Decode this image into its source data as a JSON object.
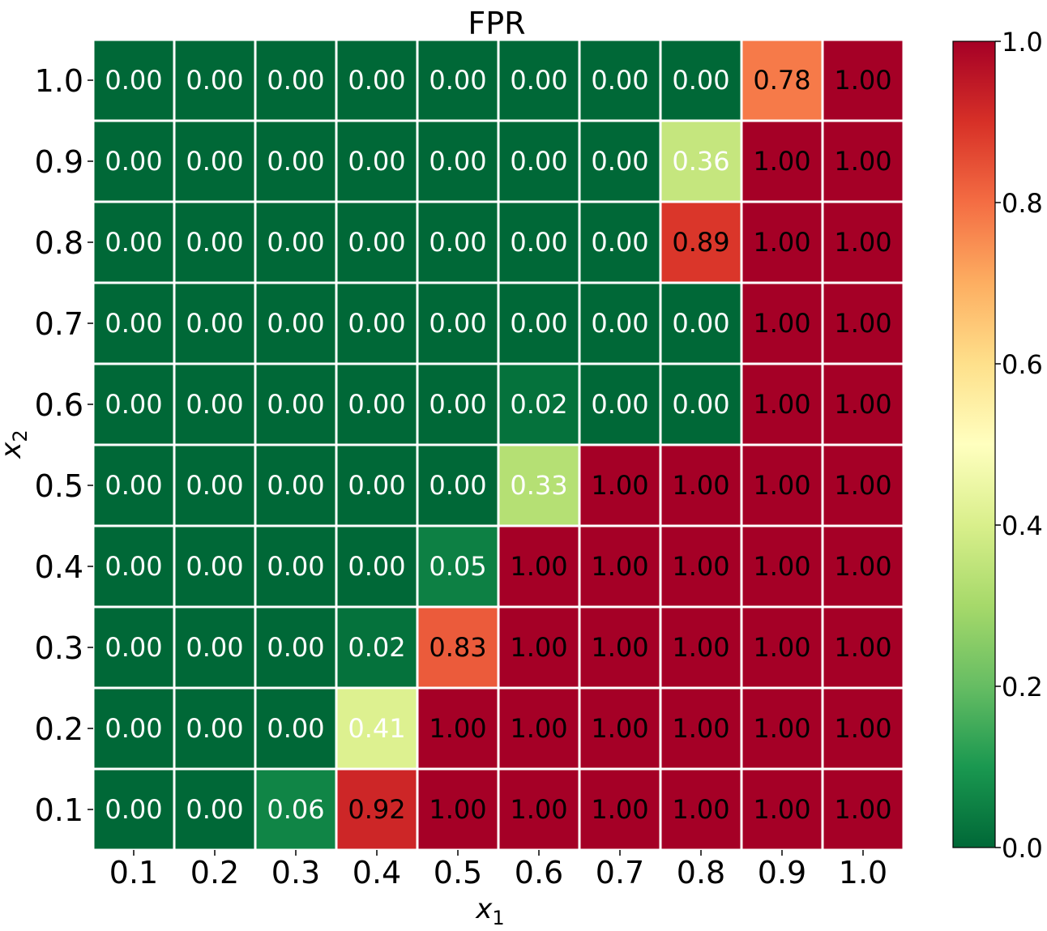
{
  "chart_data": {
    "type": "heatmap",
    "title": "FPR",
    "xlabel": "x",
    "xlabel_sub": "1",
    "ylabel": "x",
    "ylabel_sub": "2",
    "x": [
      "0.1",
      "0.2",
      "0.3",
      "0.4",
      "0.5",
      "0.6",
      "0.7",
      "0.8",
      "0.9",
      "1.0"
    ],
    "y": [
      "1.0",
      "0.9",
      "0.8",
      "0.7",
      "0.6",
      "0.5",
      "0.4",
      "0.3",
      "0.2",
      "0.1"
    ],
    "values": [
      [
        0.0,
        0.0,
        0.0,
        0.0,
        0.0,
        0.0,
        0.0,
        0.0,
        0.78,
        1.0
      ],
      [
        0.0,
        0.0,
        0.0,
        0.0,
        0.0,
        0.0,
        0.0,
        0.36,
        1.0,
        1.0
      ],
      [
        0.0,
        0.0,
        0.0,
        0.0,
        0.0,
        0.0,
        0.0,
        0.89,
        1.0,
        1.0
      ],
      [
        0.0,
        0.0,
        0.0,
        0.0,
        0.0,
        0.0,
        0.0,
        0.0,
        1.0,
        1.0
      ],
      [
        0.0,
        0.0,
        0.0,
        0.0,
        0.0,
        0.02,
        0.0,
        0.0,
        1.0,
        1.0
      ],
      [
        0.0,
        0.0,
        0.0,
        0.0,
        0.0,
        0.33,
        1.0,
        1.0,
        1.0,
        1.0
      ],
      [
        0.0,
        0.0,
        0.0,
        0.0,
        0.05,
        1.0,
        1.0,
        1.0,
        1.0,
        1.0
      ],
      [
        0.0,
        0.0,
        0.0,
        0.02,
        0.83,
        1.0,
        1.0,
        1.0,
        1.0,
        1.0
      ],
      [
        0.0,
        0.0,
        0.0,
        0.41,
        1.0,
        1.0,
        1.0,
        1.0,
        1.0,
        1.0
      ],
      [
        0.0,
        0.0,
        0.06,
        0.92,
        1.0,
        1.0,
        1.0,
        1.0,
        1.0,
        1.0
      ]
    ],
    "value_format": "2 decimals",
    "colormap": "RdYlGn_r",
    "colorbar": {
      "range": [
        0.0,
        1.0
      ],
      "ticks": [
        "0.0",
        "0.2",
        "0.4",
        "0.6",
        "0.8",
        "1.0"
      ]
    },
    "colors": {
      "low": "#006837",
      "mid": "#ffffbf",
      "high": "#a50026",
      "gridline": "#ffffff"
    }
  }
}
